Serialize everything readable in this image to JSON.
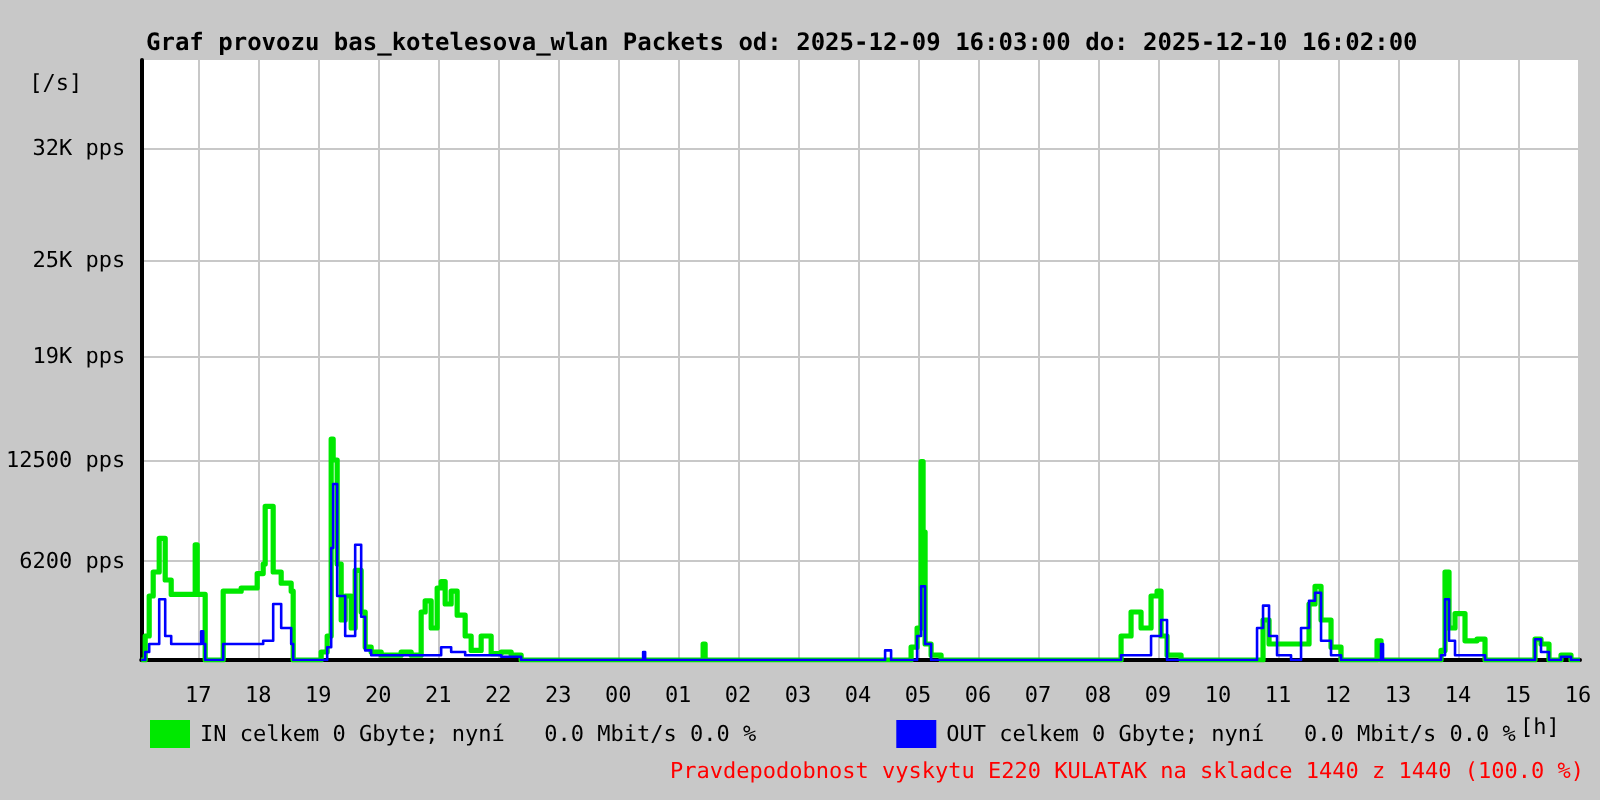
{
  "chart_data": {
    "type": "step",
    "title": "Graf provozu bas_kotelesova_wlan Packets od: 2025-12-09 16:03:00 do: 2025-12-10 16:02:00",
    "xlabel": "[h]",
    "ylabel": "[/s]",
    "annotations": [
      "Pravdepodobnost vyskytu E220 KULATAK na skladce 1440 z 1440 (100.0 %)"
    ],
    "xlim": [
      "2025-12-09T16:03",
      "2025-12-10T16:02"
    ],
    "xticks": [
      {
        "value": "2025-12-09T17:00",
        "label": "17"
      },
      {
        "value": "2025-12-09T18:00",
        "label": "18"
      },
      {
        "value": "2025-12-09T19:00",
        "label": "19"
      },
      {
        "value": "2025-12-09T20:00",
        "label": "20"
      },
      {
        "value": "2025-12-09T21:00",
        "label": "21"
      },
      {
        "value": "2025-12-09T22:00",
        "label": "22"
      },
      {
        "value": "2025-12-09T23:00",
        "label": "23"
      },
      {
        "value": "2025-12-10T00:00",
        "label": "00"
      },
      {
        "value": "2025-12-10T01:00",
        "label": "01"
      },
      {
        "value": "2025-12-10T02:00",
        "label": "02"
      },
      {
        "value": "2025-12-10T03:00",
        "label": "03"
      },
      {
        "value": "2025-12-10T04:00",
        "label": "04"
      },
      {
        "value": "2025-12-10T05:00",
        "label": "05"
      },
      {
        "value": "2025-12-10T06:00",
        "label": "06"
      },
      {
        "value": "2025-12-10T07:00",
        "label": "07"
      },
      {
        "value": "2025-12-10T08:00",
        "label": "08"
      },
      {
        "value": "2025-12-10T09:00",
        "label": "09"
      },
      {
        "value": "2025-12-10T10:00",
        "label": "10"
      },
      {
        "value": "2025-12-10T11:00",
        "label": "11"
      },
      {
        "value": "2025-12-10T12:00",
        "label": "12"
      },
      {
        "value": "2025-12-10T13:00",
        "label": "13"
      },
      {
        "value": "2025-12-10T14:00",
        "label": "14"
      },
      {
        "value": "2025-12-10T15:00",
        "label": "15"
      },
      {
        "value": "2025-12-10T16:00",
        "label": "16"
      }
    ],
    "ylim": [
      0,
      37500
    ],
    "yticks": [
      {
        "value": 6200,
        "label": "6200 pps"
      },
      {
        "value": 12500,
        "label": "12500 pps"
      },
      {
        "value": 19000,
        "label": "19K pps"
      },
      {
        "value": 25000,
        "label": "25K pps"
      },
      {
        "value": 32000,
        "label": "32K pps"
      }
    ],
    "grid": true,
    "legend": "bottom left",
    "marker": "none",
    "series": [
      {
        "name": "IN celkem 0 Gbyte; nyní   0.0 Mbit/s 0.0 %",
        "color": "#00e800",
        "x": [
          "2025-12-09T16:03",
          "2025-12-09T16:07",
          "2025-12-09T16:11",
          "2025-12-09T16:15",
          "2025-12-09T16:21",
          "2025-12-09T16:27",
          "2025-12-09T16:33",
          "2025-12-09T16:43",
          "2025-12-09T16:57",
          "2025-12-09T16:59",
          "2025-12-09T17:05",
          "2025-12-09T17:07",
          "2025-12-09T17:23",
          "2025-12-09T17:25",
          "2025-12-09T17:43",
          "2025-12-09T17:59",
          "2025-12-09T18:05",
          "2025-12-09T18:07",
          "2025-12-09T18:15",
          "2025-12-09T18:23",
          "2025-12-09T18:33",
          "2025-12-09T18:35",
          "2025-12-09T19:03",
          "2025-12-09T19:09",
          "2025-12-09T19:13",
          "2025-12-09T19:15",
          "2025-12-09T19:19",
          "2025-12-09T19:23",
          "2025-12-09T19:27",
          "2025-12-09T19:33",
          "2025-12-09T19:37",
          "2025-12-09T19:43",
          "2025-12-09T19:47",
          "2025-12-09T19:53",
          "2025-12-09T20:03",
          "2025-12-09T20:23",
          "2025-12-09T20:33",
          "2025-12-09T20:43",
          "2025-12-09T20:47",
          "2025-12-09T20:53",
          "2025-12-09T20:59",
          "2025-12-09T21:03",
          "2025-12-09T21:07",
          "2025-12-09T21:13",
          "2025-12-09T21:19",
          "2025-12-09T21:27",
          "2025-12-09T21:33",
          "2025-12-09T21:43",
          "2025-12-09T21:53",
          "2025-12-09T22:03",
          "2025-12-09T22:13",
          "2025-12-09T22:23",
          "2025-12-10T01:23",
          "2025-12-10T01:25",
          "2025-12-10T01:27",
          "2025-12-10T04:53",
          "2025-12-10T04:59",
          "2025-12-10T05:03",
          "2025-12-10T05:05",
          "2025-12-10T05:07",
          "2025-12-10T05:13",
          "2025-12-10T05:23",
          "2025-12-10T08:13",
          "2025-12-10T08:23",
          "2025-12-10T08:33",
          "2025-12-10T08:43",
          "2025-12-10T08:53",
          "2025-12-10T08:59",
          "2025-12-10T09:03",
          "2025-12-10T09:09",
          "2025-12-10T09:23",
          "2025-12-10T10:45",
          "2025-12-10T10:51",
          "2025-12-10T11:31",
          "2025-12-10T11:37",
          "2025-12-10T11:43",
          "2025-12-10T11:53",
          "2025-12-10T12:03",
          "2025-12-10T12:39",
          "2025-12-10T12:43",
          "2025-12-10T13:43",
          "2025-12-10T13:47",
          "2025-12-10T13:51",
          "2025-12-10T13:57",
          "2025-12-10T14:07",
          "2025-12-10T14:19",
          "2025-12-10T14:27",
          "2025-12-10T15:17",
          "2025-12-10T15:23",
          "2025-12-10T15:31",
          "2025-12-10T15:43",
          "2025-12-10T15:53",
          "2025-12-10T16:02"
        ],
        "values": [
          0,
          1500,
          4000,
          5500,
          7600,
          5000,
          4100,
          4100,
          7200,
          4100,
          4100,
          0,
          0,
          4300,
          4500,
          5400,
          6000,
          9600,
          5500,
          4800,
          4300,
          0,
          500,
          1500,
          13800,
          12500,
          6000,
          2500,
          4000,
          2000,
          5600,
          3000,
          800,
          500,
          300,
          500,
          300,
          3000,
          3700,
          2000,
          4500,
          4900,
          3500,
          4300,
          2800,
          1500,
          600,
          1500,
          400,
          500,
          300,
          0,
          0,
          1000,
          0,
          800,
          2000,
          12400,
          8000,
          1000,
          300,
          0,
          0,
          1500,
          3000,
          2000,
          4000,
          4300,
          1500,
          300,
          0,
          2500,
          1000,
          3500,
          4600,
          2500,
          800,
          0,
          1200,
          0,
          600,
          5500,
          2000,
          2900,
          1200,
          1300,
          0,
          1300,
          1000,
          0,
          300,
          0,
          0
        ]
      },
      {
        "name": "OUT celkem 0 Gbyte; nyní   0.0 Mbit/s 0.0 %",
        "color": "#0000ff",
        "x": [
          "2025-12-09T16:03",
          "2025-12-09T16:07",
          "2025-12-09T16:11",
          "2025-12-09T16:21",
          "2025-12-09T16:27",
          "2025-12-09T16:33",
          "2025-12-09T16:59",
          "2025-12-09T17:03",
          "2025-12-09T17:05",
          "2025-12-09T17:07",
          "2025-12-09T17:23",
          "2025-12-09T17:25",
          "2025-12-09T18:05",
          "2025-12-09T18:15",
          "2025-12-09T18:23",
          "2025-12-09T18:33",
          "2025-12-09T18:35",
          "2025-12-09T19:09",
          "2025-12-09T19:13",
          "2025-12-09T19:15",
          "2025-12-09T19:19",
          "2025-12-09T19:27",
          "2025-12-09T19:37",
          "2025-12-09T19:43",
          "2025-12-09T19:47",
          "2025-12-09T19:53",
          "2025-12-09T21:03",
          "2025-12-09T21:13",
          "2025-12-09T21:27",
          "2025-12-09T22:03",
          "2025-12-09T22:23",
          "2025-12-10T00:23",
          "2025-12-10T00:25",
          "2025-12-10T00:27",
          "2025-12-10T04:23",
          "2025-12-10T04:27",
          "2025-12-10T04:33",
          "2025-12-10T04:59",
          "2025-12-10T05:03",
          "2025-12-10T05:07",
          "2025-12-10T05:13",
          "2025-12-10T08:23",
          "2025-12-10T08:53",
          "2025-12-10T09:03",
          "2025-12-10T09:09",
          "2025-12-10T10:39",
          "2025-12-10T10:45",
          "2025-12-10T10:51",
          "2025-12-10T10:59",
          "2025-12-10T11:13",
          "2025-12-10T11:23",
          "2025-12-10T11:31",
          "2025-12-10T11:37",
          "2025-12-10T11:43",
          "2025-12-10T11:53",
          "2025-12-10T12:03",
          "2025-12-10T12:43",
          "2025-12-10T12:45",
          "2025-12-10T13:43",
          "2025-12-10T13:47",
          "2025-12-10T13:51",
          "2025-12-10T13:57",
          "2025-12-10T14:19",
          "2025-12-10T14:27",
          "2025-12-10T15:17",
          "2025-12-10T15:23",
          "2025-12-10T15:31",
          "2025-12-10T15:43",
          "2025-12-10T15:53",
          "2025-12-10T16:02"
        ],
        "values": [
          0,
          500,
          1000,
          3800,
          1500,
          1000,
          1000,
          1800,
          1000,
          0,
          0,
          1000,
          1200,
          3500,
          2000,
          1000,
          0,
          800,
          7000,
          11000,
          4000,
          1500,
          7200,
          2700,
          600,
          300,
          800,
          500,
          300,
          200,
          0,
          0,
          500,
          0,
          0,
          600,
          0,
          1500,
          4600,
          1000,
          0,
          300,
          1500,
          2500,
          0,
          2000,
          3400,
          1500,
          300,
          0,
          2000,
          3700,
          4200,
          1200,
          300,
          0,
          1000,
          0,
          300,
          3800,
          1200,
          300,
          300,
          0,
          1300,
          500,
          0,
          200,
          0,
          0
        ]
      }
    ]
  }
}
